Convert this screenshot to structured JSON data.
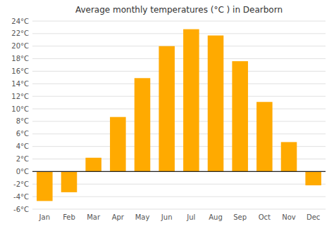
{
  "chart_data": {
    "type": "bar",
    "title": "Average monthly temperatures (°C ) in Dearborn",
    "categories": [
      "Jan",
      "Feb",
      "Mar",
      "Apr",
      "May",
      "Jun",
      "Jul",
      "Aug",
      "Sep",
      "Oct",
      "Nov",
      "Dec"
    ],
    "values": [
      -4.7,
      -3.3,
      2.2,
      8.7,
      14.9,
      20.0,
      22.7,
      21.7,
      17.6,
      11.1,
      4.7,
      -2.2
    ],
    "color": "#FFAA00",
    "ylim": [
      -6,
      24
    ],
    "yticks": [
      {
        "value": -6,
        "label": "-6°C"
      },
      {
        "value": -4,
        "label": "-4°C"
      },
      {
        "value": -2,
        "label": "-2°C"
      },
      {
        "value": 0,
        "label": "0°C"
      },
      {
        "value": 2,
        "label": "2°C"
      },
      {
        "value": 4,
        "label": "4°C"
      },
      {
        "value": 6,
        "label": "6°C"
      },
      {
        "value": 8,
        "label": "8°C"
      },
      {
        "value": 10,
        "label": "10°C"
      },
      {
        "value": 12,
        "label": "12°C"
      },
      {
        "value": 14,
        "label": "14°C"
      },
      {
        "value": 16,
        "label": "16°C"
      },
      {
        "value": 18,
        "label": "18°C"
      },
      {
        "value": 20,
        "label": "20°C"
      },
      {
        "value": 22,
        "label": "22°C"
      },
      {
        "value": 24,
        "label": "24°C"
      }
    ],
    "grid": true
  }
}
